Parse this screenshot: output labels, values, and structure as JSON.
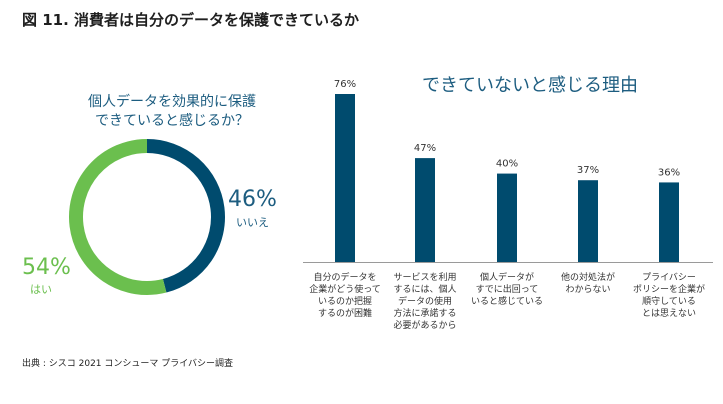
{
  "figure_title": "図 11. 消費者は自分のデータを保護できているか",
  "source": "出典 : シスコ 2021 コンシューマ プライバシー調査",
  "colors": {
    "dark_blue": "#004b6e",
    "green": "#6bbf4e",
    "axis": "#9a9a9a"
  },
  "chart_data": [
    {
      "type": "pie",
      "style": "donut",
      "title_lines": [
        "個人データを効果的に保護",
        "できていると感じるか？"
      ],
      "slices": [
        {
          "label": "いいえ",
          "value": 46,
          "display": "46%",
          "color": "#004b6e"
        },
        {
          "label": "はい",
          "value": 54,
          "display": "54%",
          "color": "#6bbf4e"
        }
      ]
    },
    {
      "type": "bar",
      "title": "できていないと感じる理由",
      "ylim": [
        0,
        76
      ],
      "categories": [
        {
          "lines": [
            "自分のデータを",
            "企業がどう使って",
            "いるのか把握",
            "するのが困難"
          ],
          "value": 76,
          "display": "76%"
        },
        {
          "lines": [
            "サービスを利用",
            "するには、個人",
            "データの使用",
            "方法に承諾する",
            "必要があるから"
          ],
          "value": 47,
          "display": "47%"
        },
        {
          "lines": [
            "個人データが",
            "すでに出回って",
            "いると感じている"
          ],
          "value": 40,
          "display": "40%"
        },
        {
          "lines": [
            "他の対処法が",
            "わからない"
          ],
          "value": 37,
          "display": "37%"
        },
        {
          "lines": [
            "プライバシー",
            "ポリシーを企業が",
            "順守している",
            "とは思えない"
          ],
          "value": 36,
          "display": "36%"
        }
      ]
    }
  ]
}
